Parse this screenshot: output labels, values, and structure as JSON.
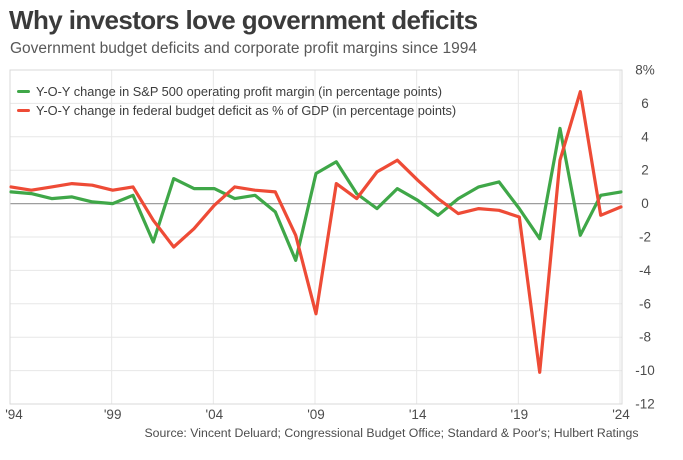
{
  "header": {
    "title": "Why investors love government deficits",
    "subtitle": "Government budget deficits and corporate profit margins since 1994"
  },
  "legend": [
    {
      "label": "Y-O-Y change in S&P 500 operating profit margin (in percentage points)",
      "color": "#3fa748"
    },
    {
      "label": "Y-O-Y change in federal budget deficit as % of GDP (in percentage points)",
      "color": "#ee4b36"
    }
  ],
  "source": "Source: Vincent Deluard; Congressional Budget Office; Standard & Poor's; Hulbert Ratings",
  "chart_data": {
    "type": "line",
    "title": "Why investors love government deficits",
    "subtitle": "Government budget deficits and corporate profit margins since 1994",
    "xlabel": "",
    "ylabel": "",
    "xlim": [
      1994,
      2024
    ],
    "ylim": [
      -12,
      8
    ],
    "grid": true,
    "legend_position": "top-left-inside",
    "x": [
      1994,
      1995,
      1996,
      1997,
      1998,
      1999,
      2000,
      2001,
      2002,
      2003,
      2004,
      2005,
      2006,
      2007,
      2008,
      2009,
      2010,
      2011,
      2012,
      2013,
      2014,
      2015,
      2016,
      2017,
      2018,
      2019,
      2020,
      2021,
      2022,
      2023,
      2024
    ],
    "series": [
      {
        "name": "Y-O-Y change in S&P 500 operating profit margin (in percentage points)",
        "color": "#3fa748",
        "values": [
          0.7,
          0.6,
          0.3,
          0.4,
          0.1,
          0.0,
          0.5,
          -2.3,
          1.5,
          0.9,
          0.9,
          0.3,
          0.5,
          -0.5,
          -3.4,
          1.8,
          2.5,
          0.6,
          -0.3,
          0.9,
          0.2,
          -0.7,
          0.3,
          1.0,
          1.3,
          -0.3,
          -2.1,
          4.5,
          -1.9,
          0.5,
          0.7
        ]
      },
      {
        "name": "Y-O-Y change in federal budget deficit as % of GDP (in percentage points)",
        "color": "#ee4b36",
        "values": [
          1.0,
          0.8,
          1.0,
          1.2,
          1.1,
          0.8,
          1.0,
          -1.0,
          -2.6,
          -1.5,
          -0.1,
          1.0,
          0.8,
          0.7,
          -1.9,
          -6.6,
          1.2,
          0.3,
          1.9,
          2.6,
          1.4,
          0.3,
          -0.6,
          -0.3,
          -0.4,
          -0.8,
          -10.1,
          2.6,
          6.7,
          -0.7,
          -0.2
        ]
      }
    ],
    "x_tick_years": [
      1994,
      1999,
      2004,
      2009,
      2014,
      2019,
      2024
    ],
    "x_tick_labels": [
      "'94",
      "'99",
      "'04",
      "'09",
      "'14",
      "'19",
      "'24"
    ],
    "y_ticks": [
      8,
      6,
      4,
      2,
      0,
      -2,
      -4,
      -6,
      -8,
      -10,
      -12
    ],
    "y_tick_labels": [
      "8%",
      "6",
      "4",
      "2",
      "0",
      "-2",
      "-4",
      "-6",
      "-8",
      "-10",
      "-12"
    ],
    "colors": {
      "grid": "#e7e7e7",
      "border": "#d9d9d9",
      "zero_line": "#9e9e9e",
      "tick_text": "#4c4c4c"
    }
  }
}
